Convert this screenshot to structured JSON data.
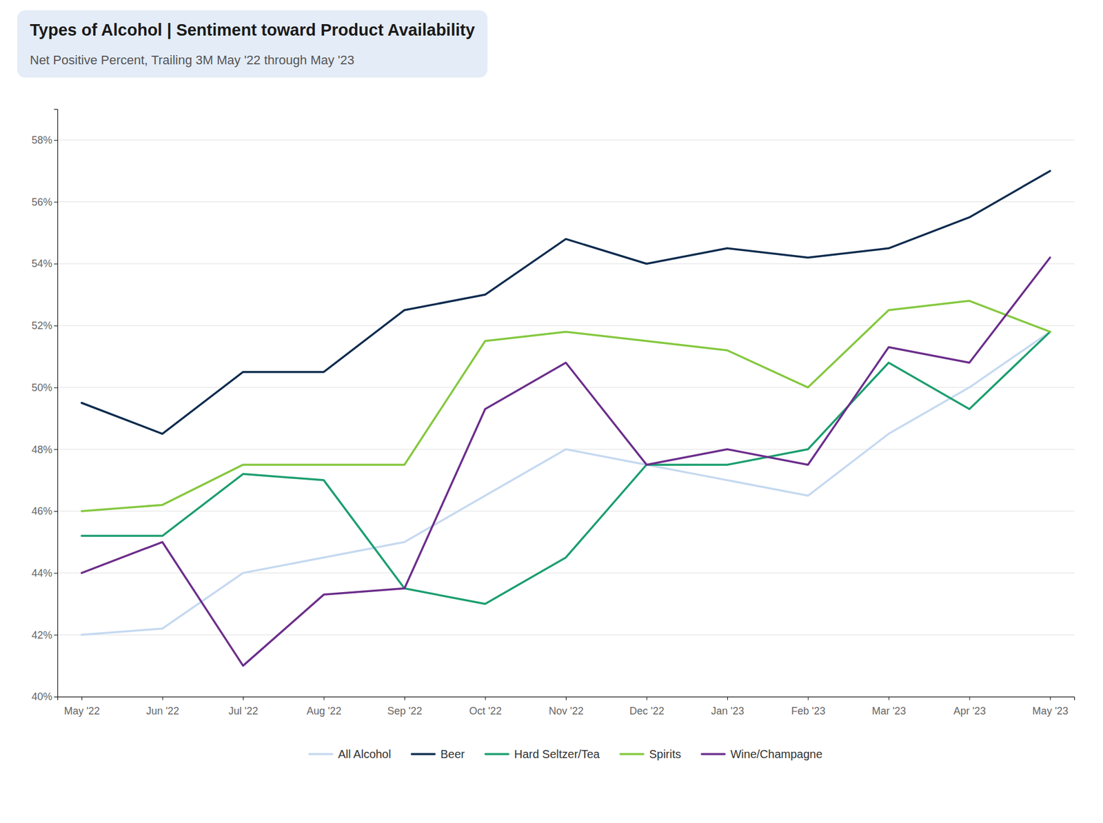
{
  "chart_data": {
    "type": "line",
    "title": "Types of Alcohol | Sentiment toward Product Availability",
    "subtitle": "Net Positive Percent, Trailing 3M May '22 through May '23",
    "categories": [
      "May '22",
      "Jun '22",
      "Jul '22",
      "Aug '22",
      "Sep '22",
      "Oct '22",
      "Nov '22",
      "Dec '22",
      "Jan '23",
      "Feb '23",
      "Mar '23",
      "Apr '23",
      "May '23"
    ],
    "series": [
      {
        "name": "All Alcohol",
        "color": "#c5d9f0",
        "values": [
          42.0,
          42.2,
          44.0,
          44.5,
          45.0,
          46.5,
          48.0,
          47.5,
          47.0,
          46.5,
          48.5,
          50.0,
          51.8
        ]
      },
      {
        "name": "Beer",
        "color": "#0d2b4e",
        "values": [
          49.5,
          48.5,
          50.5,
          50.5,
          52.5,
          53.0,
          54.8,
          54.0,
          54.5,
          54.2,
          54.5,
          55.5,
          57.0
        ]
      },
      {
        "name": "Hard Seltzer/Tea",
        "color": "#1a9e6e",
        "values": [
          45.2,
          45.2,
          47.2,
          47.0,
          43.5,
          43.0,
          44.5,
          47.5,
          47.5,
          48.0,
          50.8,
          49.3,
          51.8
        ]
      },
      {
        "name": "Spirits",
        "color": "#84c83e",
        "values": [
          46.0,
          46.2,
          47.5,
          47.5,
          47.5,
          51.5,
          51.8,
          51.5,
          51.2,
          50.0,
          52.5,
          52.8,
          51.8
        ]
      },
      {
        "name": "Wine/Champagne",
        "color": "#6b2d8b",
        "values": [
          44.0,
          45.0,
          41.0,
          43.3,
          43.5,
          49.3,
          50.8,
          47.5,
          48.0,
          47.5,
          51.3,
          50.8,
          54.2
        ]
      }
    ],
    "ylim": [
      40,
      59
    ],
    "yticks": [
      {
        "value": 40,
        "label": "40%"
      },
      {
        "value": 42,
        "label": "42%"
      },
      {
        "value": 44,
        "label": "44%"
      },
      {
        "value": 46,
        "label": "46%"
      },
      {
        "value": 48,
        "label": "48%"
      },
      {
        "value": 50,
        "label": "50%"
      },
      {
        "value": 52,
        "label": "52%"
      },
      {
        "value": 54,
        "label": "54%"
      },
      {
        "value": 56,
        "label": "56%"
      },
      {
        "value": 58,
        "label": "58%"
      }
    ],
    "grid": true,
    "legend": "bottom"
  }
}
